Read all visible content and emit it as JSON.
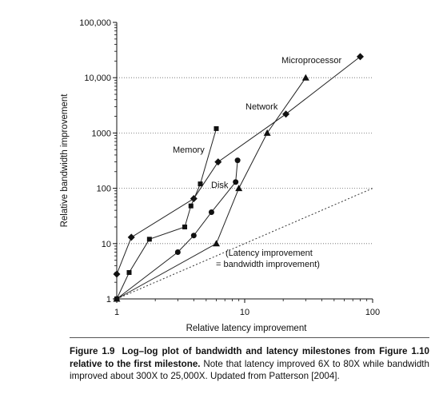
{
  "chart_data": {
    "type": "scatter",
    "title": "",
    "xlabel": "Relative latency improvement",
    "ylabel": "Relative bandwidth improvement",
    "xscale": "log",
    "yscale": "log",
    "xlim": [
      1,
      100
    ],
    "ylim": [
      1,
      100000
    ],
    "x_ticks": [
      {
        "value": 1,
        "label": "1"
      },
      {
        "value": 10,
        "label": "10"
      },
      {
        "value": 100,
        "label": "100"
      }
    ],
    "y_ticks": [
      {
        "value": 1,
        "label": "1"
      },
      {
        "value": 10,
        "label": "10"
      },
      {
        "value": 100,
        "label": "100"
      },
      {
        "value": 1000,
        "label": "1000"
      },
      {
        "value": 10000,
        "label": "10,000"
      },
      {
        "value": 100000,
        "label": "100,000"
      }
    ],
    "grid": "dotted horizontal lines at 10 through 10,000",
    "series": [
      {
        "name": "Microprocessor",
        "marker": "diamond",
        "points": [
          [
            1,
            2.8
          ],
          [
            1.3,
            13
          ],
          [
            4,
            65
          ],
          [
            6.2,
            300
          ],
          [
            21,
            2200
          ],
          [
            80,
            24000
          ]
        ]
      },
      {
        "name": "Memory",
        "marker": "square",
        "points": [
          [
            1,
            1
          ],
          [
            1.25,
            3
          ],
          [
            1.8,
            12
          ],
          [
            3.4,
            20
          ],
          [
            3.8,
            48
          ],
          [
            4.5,
            120
          ],
          [
            6,
            1200
          ]
        ]
      },
      {
        "name": "Network",
        "marker": "triangle",
        "points": [
          [
            1,
            1
          ],
          [
            6,
            10
          ],
          [
            9,
            100
          ],
          [
            15,
            1000
          ],
          [
            30,
            10000
          ]
        ]
      },
      {
        "name": "Disk",
        "marker": "circle",
        "points": [
          [
            1,
            1
          ],
          [
            3,
            7
          ],
          [
            4,
            14
          ],
          [
            5.5,
            37
          ],
          [
            8.5,
            130
          ],
          [
            8.8,
            320
          ]
        ]
      }
    ],
    "reference_line": {
      "points": [
        [
          1,
          1
        ],
        [
          100,
          100
        ]
      ],
      "label_lines": [
        "(Latency improvement",
        "= bandwidth improvement)"
      ]
    }
  },
  "caption": {
    "figure_label": "Figure 1.9",
    "lead": "Log–log plot of bandwidth and latency milestones from Figure 1.10 relative to the first milestone.",
    "body": "Note that latency improved 6X to 80X while bandwidth improved about 300X to 25,000X. Updated from Patterson [2004]."
  }
}
